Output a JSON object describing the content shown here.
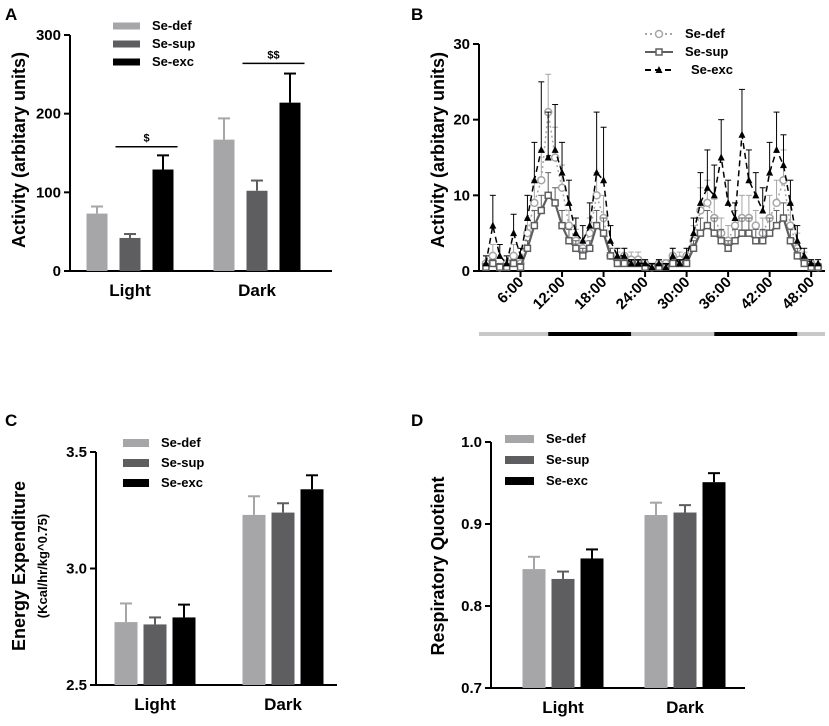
{
  "colors": {
    "se_def": "#a6a6a8",
    "se_sup": "#5e5e60",
    "se_exc": "#000000",
    "light_bar": "#c8c8c8",
    "dark_bar": "#000000"
  },
  "chart_data": [
    {
      "panel": "A",
      "type": "bar",
      "categories": [
        "Light",
        "Dark"
      ],
      "ylabel": "Activity (arbitary units)",
      "ylim": [
        0,
        300
      ],
      "yticks": [
        "0",
        "100",
        "200",
        "300"
      ],
      "series": [
        {
          "name": "Se-def",
          "values": [
            73,
            167
          ],
          "errors": [
            9,
            27
          ]
        },
        {
          "name": "Se-sup",
          "values": [
            42,
            102
          ],
          "errors": [
            5,
            13
          ]
        },
        {
          "name": "Se-exc",
          "values": [
            129,
            214
          ],
          "errors": [
            18,
            37
          ]
        }
      ],
      "annotations": [
        {
          "text": "$",
          "category": "Light",
          "from": "Se-sup",
          "to": "Se-exc",
          "y": 158
        },
        {
          "text": "$$",
          "category": "Dark",
          "from": "Se-sup",
          "to": "Se-exc",
          "y": 264
        }
      ]
    },
    {
      "panel": "B",
      "type": "line",
      "ylabel": "Activity (arbitary units)",
      "ylim": [
        0,
        30
      ],
      "xlim": [
        0,
        50
      ],
      "yticks": [
        "0",
        "10",
        "20",
        "30"
      ],
      "xticks": [
        "6:00",
        "12:00",
        "18:00",
        "24:00",
        "30:00",
        "36:00",
        "42:00",
        "48:00"
      ],
      "xtick_values": [
        6,
        12,
        18,
        24,
        30,
        36,
        42,
        48
      ],
      "light_dark_bar": [
        {
          "state": "light",
          "from": 0,
          "to": 10
        },
        {
          "state": "dark",
          "from": 10,
          "to": 22
        },
        {
          "state": "light",
          "from": 22,
          "to": 34
        },
        {
          "state": "dark",
          "from": 34,
          "to": 46
        },
        {
          "state": "light",
          "from": 46,
          "to": 50
        }
      ],
      "x": [
        1,
        2,
        3,
        4,
        5,
        6,
        7,
        8,
        9,
        10,
        11,
        12,
        13,
        14,
        15,
        16,
        17,
        18,
        19,
        20,
        21,
        22,
        23,
        24,
        25,
        26,
        27,
        28,
        29,
        30,
        31,
        32,
        33,
        34,
        35,
        36,
        37,
        38,
        39,
        40,
        41,
        42,
        43,
        44,
        45,
        46,
        47,
        48,
        49
      ],
      "series": [
        {
          "name": "Se-def",
          "style": "dotted",
          "values": [
            1,
            2,
            0.5,
            1,
            2,
            1,
            5,
            9,
            12,
            21,
            15,
            11,
            6,
            4,
            3,
            5,
            10,
            7,
            2,
            1.5,
            2,
            1.5,
            1.5,
            1,
            0.5,
            1,
            1,
            2,
            1.5,
            2,
            4,
            8,
            9,
            7,
            5,
            4,
            6,
            7,
            7,
            6,
            5,
            7,
            9,
            12,
            6,
            3,
            1.5,
            1,
            0.5
          ],
          "errors": [
            1,
            1.5,
            0.5,
            1,
            1.5,
            1,
            2,
            3,
            4,
            5,
            4,
            3,
            2,
            1.5,
            1,
            2,
            3,
            3,
            1,
            1,
            1,
            1,
            1,
            0.5,
            0.5,
            0.5,
            0.5,
            1,
            1,
            1,
            2,
            3,
            3,
            2.5,
            2,
            2,
            2,
            3,
            3,
            2,
            2,
            3,
            3,
            4,
            3,
            2,
            1,
            0.5,
            0.5
          ]
        },
        {
          "name": "Se-sup",
          "style": "solid",
          "values": [
            0.5,
            1,
            0.5,
            0.5,
            1,
            0.5,
            3,
            6,
            8,
            10,
            9,
            6,
            4,
            3,
            2,
            3,
            6,
            5,
            2,
            1,
            1,
            1,
            1,
            0.5,
            0.5,
            0.5,
            0.5,
            1,
            1,
            1,
            3,
            5,
            6,
            5,
            4,
            3,
            4,
            5,
            5,
            4,
            4,
            5,
            6,
            7,
            4,
            2,
            1,
            0.5,
            0.5
          ],
          "errors": [
            0.5,
            0.5,
            0.5,
            0.5,
            0.5,
            0.5,
            1,
            2,
            2,
            3,
            2,
            2,
            1.5,
            1,
            1,
            1,
            2,
            2,
            1,
            0.5,
            0.5,
            0.5,
            0.5,
            0.5,
            0.5,
            0.5,
            0.5,
            0.5,
            0.5,
            0.5,
            1,
            2,
            2,
            2,
            1.5,
            1,
            1.5,
            2,
            2,
            1.5,
            1.5,
            2,
            2,
            2,
            1.5,
            1,
            0.5,
            0.5,
            0.5
          ]
        },
        {
          "name": "Se-exc",
          "style": "dashed",
          "values": [
            1,
            6,
            2,
            1,
            5,
            2,
            7,
            12,
            16,
            15,
            16,
            13,
            9,
            5,
            4,
            6,
            13,
            12,
            4,
            2,
            2,
            1,
            1,
            1,
            0.5,
            1,
            0.5,
            2,
            1,
            2,
            5,
            9,
            11,
            10,
            15,
            9,
            7,
            18,
            12,
            10,
            8,
            13,
            16,
            14,
            9,
            4,
            2,
            1,
            1
          ],
          "errors": [
            1,
            4,
            1.5,
            1,
            2.5,
            1,
            3,
            5,
            9,
            6,
            6,
            4,
            3,
            2,
            2,
            3,
            8,
            7,
            2,
            1,
            1,
            0.5,
            0.5,
            0.5,
            0.5,
            0.5,
            0.5,
            1,
            0.5,
            1,
            2,
            4,
            5,
            4,
            5,
            3,
            2,
            6,
            4,
            3,
            3,
            4,
            5,
            4,
            3,
            2,
            1,
            0.5,
            0.5
          ]
        }
      ]
    },
    {
      "panel": "C",
      "type": "bar",
      "categories": [
        "Light",
        "Dark"
      ],
      "ylabel": "Energy Expenditure",
      "ylabel2": "(Kcal/hr/kg^0.75)",
      "ylim": [
        2.5,
        3.5
      ],
      "yticks": [
        "2.5",
        "3.0",
        "3.5"
      ],
      "series": [
        {
          "name": "Se-def",
          "values": [
            2.77,
            3.23
          ],
          "errors": [
            0.08,
            0.08
          ]
        },
        {
          "name": "Se-sup",
          "values": [
            2.76,
            3.24
          ],
          "errors": [
            0.03,
            0.04
          ]
        },
        {
          "name": "Se-exc",
          "values": [
            2.79,
            3.34
          ],
          "errors": [
            0.055,
            0.06
          ]
        }
      ]
    },
    {
      "panel": "D",
      "type": "bar",
      "categories": [
        "Light",
        "Dark"
      ],
      "ylabel": "Respiratory Quotient",
      "ylim": [
        0.7,
        1.0
      ],
      "yticks": [
        "0.7",
        "0.8",
        "0.9",
        "1.0"
      ],
      "series": [
        {
          "name": "Se-def",
          "values": [
            0.845,
            0.911
          ],
          "errors": [
            0.015,
            0.015
          ]
        },
        {
          "name": "Se-sup",
          "values": [
            0.833,
            0.914
          ],
          "errors": [
            0.009,
            0.009
          ]
        },
        {
          "name": "Se-exc",
          "values": [
            0.858,
            0.951
          ],
          "errors": [
            0.011,
            0.011
          ]
        }
      ]
    }
  ]
}
